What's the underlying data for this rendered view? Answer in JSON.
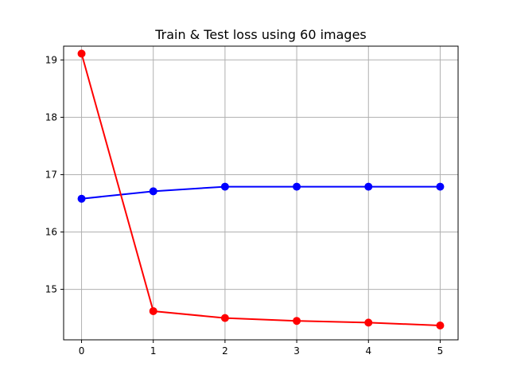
{
  "chart_data": {
    "type": "line",
    "title": "Train & Test loss using 60 images",
    "xlabel": "",
    "ylabel": "",
    "x": [
      0,
      1,
      2,
      3,
      4,
      5
    ],
    "xlim": [
      -0.25,
      5.25
    ],
    "ylim": [
      14.12,
      19.24
    ],
    "xticks": [
      "0",
      "1",
      "2",
      "3",
      "4",
      "5"
    ],
    "yticks": [
      "15",
      "16",
      "17",
      "18",
      "19"
    ],
    "grid": true,
    "legend": "none",
    "series": [
      {
        "color": "#0000ff",
        "marker": "circle",
        "values": [
          16.58,
          16.71,
          16.79,
          16.79,
          16.79,
          16.79
        ]
      },
      {
        "color": "#ff0000",
        "marker": "circle",
        "values": [
          19.11,
          14.62,
          14.5,
          14.45,
          14.42,
          14.37
        ]
      }
    ]
  }
}
